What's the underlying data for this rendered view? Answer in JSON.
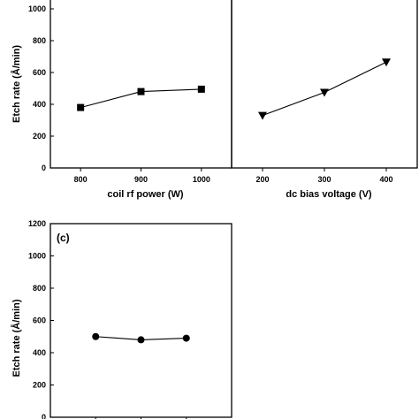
{
  "chart_data": [
    {
      "type": "line",
      "panel": "a",
      "panel_label": "",
      "xlabel": "coil rf power (W)",
      "ylabel": "Etch rate (Å/min)",
      "x_ticks": [
        800,
        900,
        1000
      ],
      "y_ticks": [
        0,
        200,
        400,
        600,
        800,
        1000
      ],
      "xlim": [
        750,
        1050
      ],
      "ylim": [
        0,
        1200
      ],
      "marker": "square",
      "series": [
        {
          "x": [
            800,
            900,
            1000
          ],
          "values": [
            380,
            480,
            495
          ]
        }
      ]
    },
    {
      "type": "line",
      "panel": "b",
      "panel_label": "",
      "xlabel": "dc bias voltage (V)",
      "ylabel": "",
      "x_ticks": [
        200,
        300,
        400
      ],
      "y_ticks": [],
      "xlim": [
        150,
        450
      ],
      "ylim": [
        0,
        1200
      ],
      "marker": "triangle-down",
      "series": [
        {
          "x": [
            200,
            300,
            400
          ],
          "values": [
            330,
            475,
            665
          ]
        }
      ]
    },
    {
      "type": "line",
      "panel": "c",
      "panel_label": "(c)",
      "xlabel": "",
      "ylabel": "Etch rate (Å/min)",
      "x_ticks": [],
      "y_ticks": [
        0,
        200,
        400,
        600,
        800,
        1000,
        1200
      ],
      "xlim": [
        0,
        4
      ],
      "ylim": [
        0,
        1200
      ],
      "marker": "circle",
      "series": [
        {
          "x": [
            1,
            2,
            3
          ],
          "values": [
            500,
            480,
            490
          ]
        }
      ]
    }
  ]
}
